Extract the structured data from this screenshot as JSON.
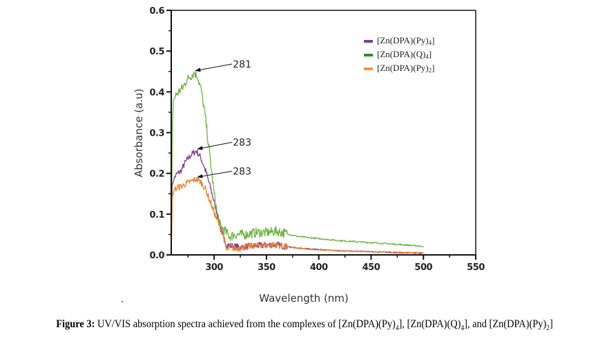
{
  "chart_data": {
    "type": "line",
    "title": "",
    "xlabel": "Wavelength (nm)",
    "ylabel": "Absorbance (a.u)",
    "xlim": [
      259,
      550
    ],
    "ylim": [
      0.0,
      0.6
    ],
    "x_ticks": [
      300,
      350,
      400,
      450,
      500,
      550
    ],
    "y_ticks": [
      "0.0",
      "0.1",
      "0.2",
      "0.3",
      "0.4",
      "0.5",
      "0.6"
    ],
    "grid": false,
    "legend_position": "top-right",
    "series": [
      {
        "name": "[Zn(DPA)(Py)4]",
        "color": "#7b3f9a",
        "noise": 0.008,
        "points": [
          [
            259,
            0.0
          ],
          [
            260,
            0.17
          ],
          [
            262,
            0.19
          ],
          [
            265,
            0.2
          ],
          [
            268,
            0.205
          ],
          [
            272,
            0.225
          ],
          [
            276,
            0.24
          ],
          [
            280,
            0.25
          ],
          [
            283,
            0.255
          ],
          [
            287,
            0.24
          ],
          [
            292,
            0.205
          ],
          [
            297,
            0.16
          ],
          [
            302,
            0.11
          ],
          [
            306,
            0.07
          ],
          [
            309,
            0.04
          ],
          [
            312,
            0.025
          ],
          [
            320,
            0.02
          ],
          [
            330,
            0.02
          ],
          [
            340,
            0.022
          ],
          [
            350,
            0.024
          ],
          [
            360,
            0.025
          ],
          [
            365,
            0.022
          ],
          [
            380,
            0.017
          ],
          [
            400,
            0.013
          ],
          [
            420,
            0.01
          ],
          [
            450,
            0.008
          ],
          [
            480,
            0.005
          ],
          [
            500,
            0.004
          ]
        ]
      },
      {
        "name": "[Zn(DPA)(Q)4]",
        "color": "#6db33f",
        "noise": 0.012,
        "points": [
          [
            259,
            0.0
          ],
          [
            260,
            0.3
          ],
          [
            261,
            0.38
          ],
          [
            263,
            0.39
          ],
          [
            266,
            0.4
          ],
          [
            270,
            0.41
          ],
          [
            274,
            0.43
          ],
          [
            278,
            0.44
          ],
          [
            281,
            0.447
          ],
          [
            284,
            0.44
          ],
          [
            288,
            0.4
          ],
          [
            292,
            0.33
          ],
          [
            296,
            0.24
          ],
          [
            300,
            0.15
          ],
          [
            303,
            0.1
          ],
          [
            306,
            0.07
          ],
          [
            310,
            0.06
          ],
          [
            315,
            0.045
          ],
          [
            320,
            0.05
          ],
          [
            330,
            0.05
          ],
          [
            340,
            0.055
          ],
          [
            350,
            0.055
          ],
          [
            360,
            0.058
          ],
          [
            365,
            0.055
          ],
          [
            380,
            0.045
          ],
          [
            400,
            0.04
          ],
          [
            420,
            0.035
          ],
          [
            450,
            0.03
          ],
          [
            480,
            0.025
          ],
          [
            500,
            0.021
          ]
        ]
      },
      {
        "name": "[Zn(DPA)(Py)2]",
        "color": "#f07f2a",
        "noise": 0.008,
        "points": [
          [
            259,
            0.0
          ],
          [
            260,
            0.14
          ],
          [
            262,
            0.16
          ],
          [
            265,
            0.165
          ],
          [
            270,
            0.17
          ],
          [
            275,
            0.177
          ],
          [
            280,
            0.183
          ],
          [
            283,
            0.186
          ],
          [
            287,
            0.18
          ],
          [
            292,
            0.16
          ],
          [
            297,
            0.125
          ],
          [
            302,
            0.09
          ],
          [
            306,
            0.065
          ],
          [
            309,
            0.045
          ],
          [
            312,
            0.01
          ],
          [
            315,
            0.02
          ],
          [
            320,
            0.015
          ],
          [
            330,
            0.02
          ],
          [
            340,
            0.023
          ],
          [
            350,
            0.024
          ],
          [
            360,
            0.025
          ],
          [
            365,
            0.021
          ],
          [
            380,
            0.016
          ],
          [
            400,
            0.012
          ],
          [
            420,
            0.01
          ],
          [
            450,
            0.008
          ],
          [
            480,
            0.006
          ],
          [
            500,
            0.006
          ]
        ]
      }
    ],
    "annotations": [
      {
        "label": "281",
        "x": 281,
        "y": 0.447,
        "text_x": 308,
        "text_y": 0.465
      },
      {
        "label": "283",
        "x": 283,
        "y": 0.255,
        "text_x": 308,
        "text_y": 0.273
      },
      {
        "label": "283",
        "x": 283,
        "y": 0.186,
        "text_x": 308,
        "text_y": 0.202
      }
    ]
  },
  "legend": [
    {
      "base": "[Zn(DPA)(Py)",
      "sub": "4",
      "close": "]",
      "color": "#7b3f9a"
    },
    {
      "base": "[Zn(DPA)(Q)",
      "sub": "4",
      "close": "]",
      "color": "#2e8b2e"
    },
    {
      "base": "[Zn(DPA)(Py)",
      "sub": "2",
      "close": "]",
      "color": "#f7943a"
    }
  ],
  "caption": {
    "label": "Figure 3:",
    "text1": " UV/VIS absorption spectra achieved from the complexes of [Zn(DPA)(Py)",
    "sub1": "4",
    "text2": "], [Zn(DPA)(Q)",
    "sub2": "4",
    "text3": "], and [Zn(DPA)(Py)",
    "sub3": "2",
    "text4": "]"
  }
}
